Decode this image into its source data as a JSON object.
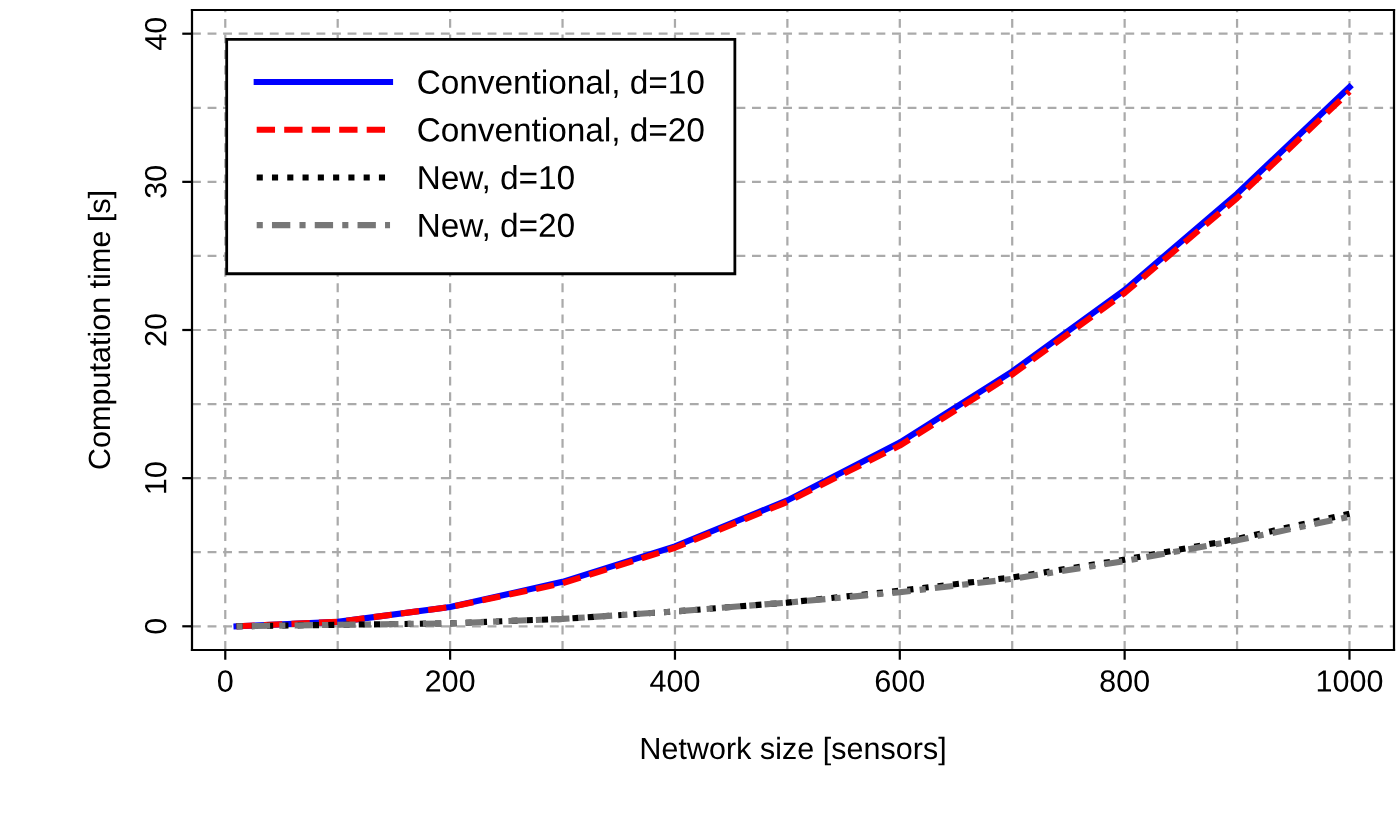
{
  "chart_data": {
    "type": "line",
    "xlabel": "Network size [sensors]",
    "ylabel": "Computation time [s]",
    "x": [
      10,
      100,
      200,
      300,
      400,
      500,
      600,
      700,
      800,
      900,
      1000
    ],
    "series": [
      {
        "name": "Conventional, d=10",
        "color": "#0000ff",
        "line_style": "solid",
        "values": [
          0,
          0.3,
          1.3,
          3.0,
          5.4,
          8.5,
          12.4,
          17.2,
          22.7,
          29.2,
          36.4
        ]
      },
      {
        "name": "Conventional, d=20",
        "color": "#ff0000",
        "line_style": "dashed",
        "values": [
          0,
          0.3,
          1.3,
          2.9,
          5.3,
          8.4,
          12.2,
          17.0,
          22.5,
          28.9,
          36.1
        ]
      },
      {
        "name": "New, d=10",
        "color": "#000000",
        "line_style": "dotted",
        "values": [
          0,
          0.1,
          0.2,
          0.5,
          1.0,
          1.6,
          2.4,
          3.3,
          4.5,
          5.9,
          7.6
        ]
      },
      {
        "name": "New, d=20",
        "color": "#777777",
        "line_style": "dashdot",
        "values": [
          0,
          0.1,
          0.2,
          0.5,
          1.0,
          1.6,
          2.3,
          3.2,
          4.4,
          5.8,
          7.4
        ]
      }
    ],
    "xlim": [
      -29.6,
      1039.6
    ],
    "ylim": [
      -1.6,
      41.6
    ],
    "xticks": [
      0,
      200,
      400,
      600,
      800,
      1000
    ],
    "yticks": [
      0,
      10,
      20,
      30,
      40
    ],
    "grid": true,
    "legend": "top left"
  }
}
